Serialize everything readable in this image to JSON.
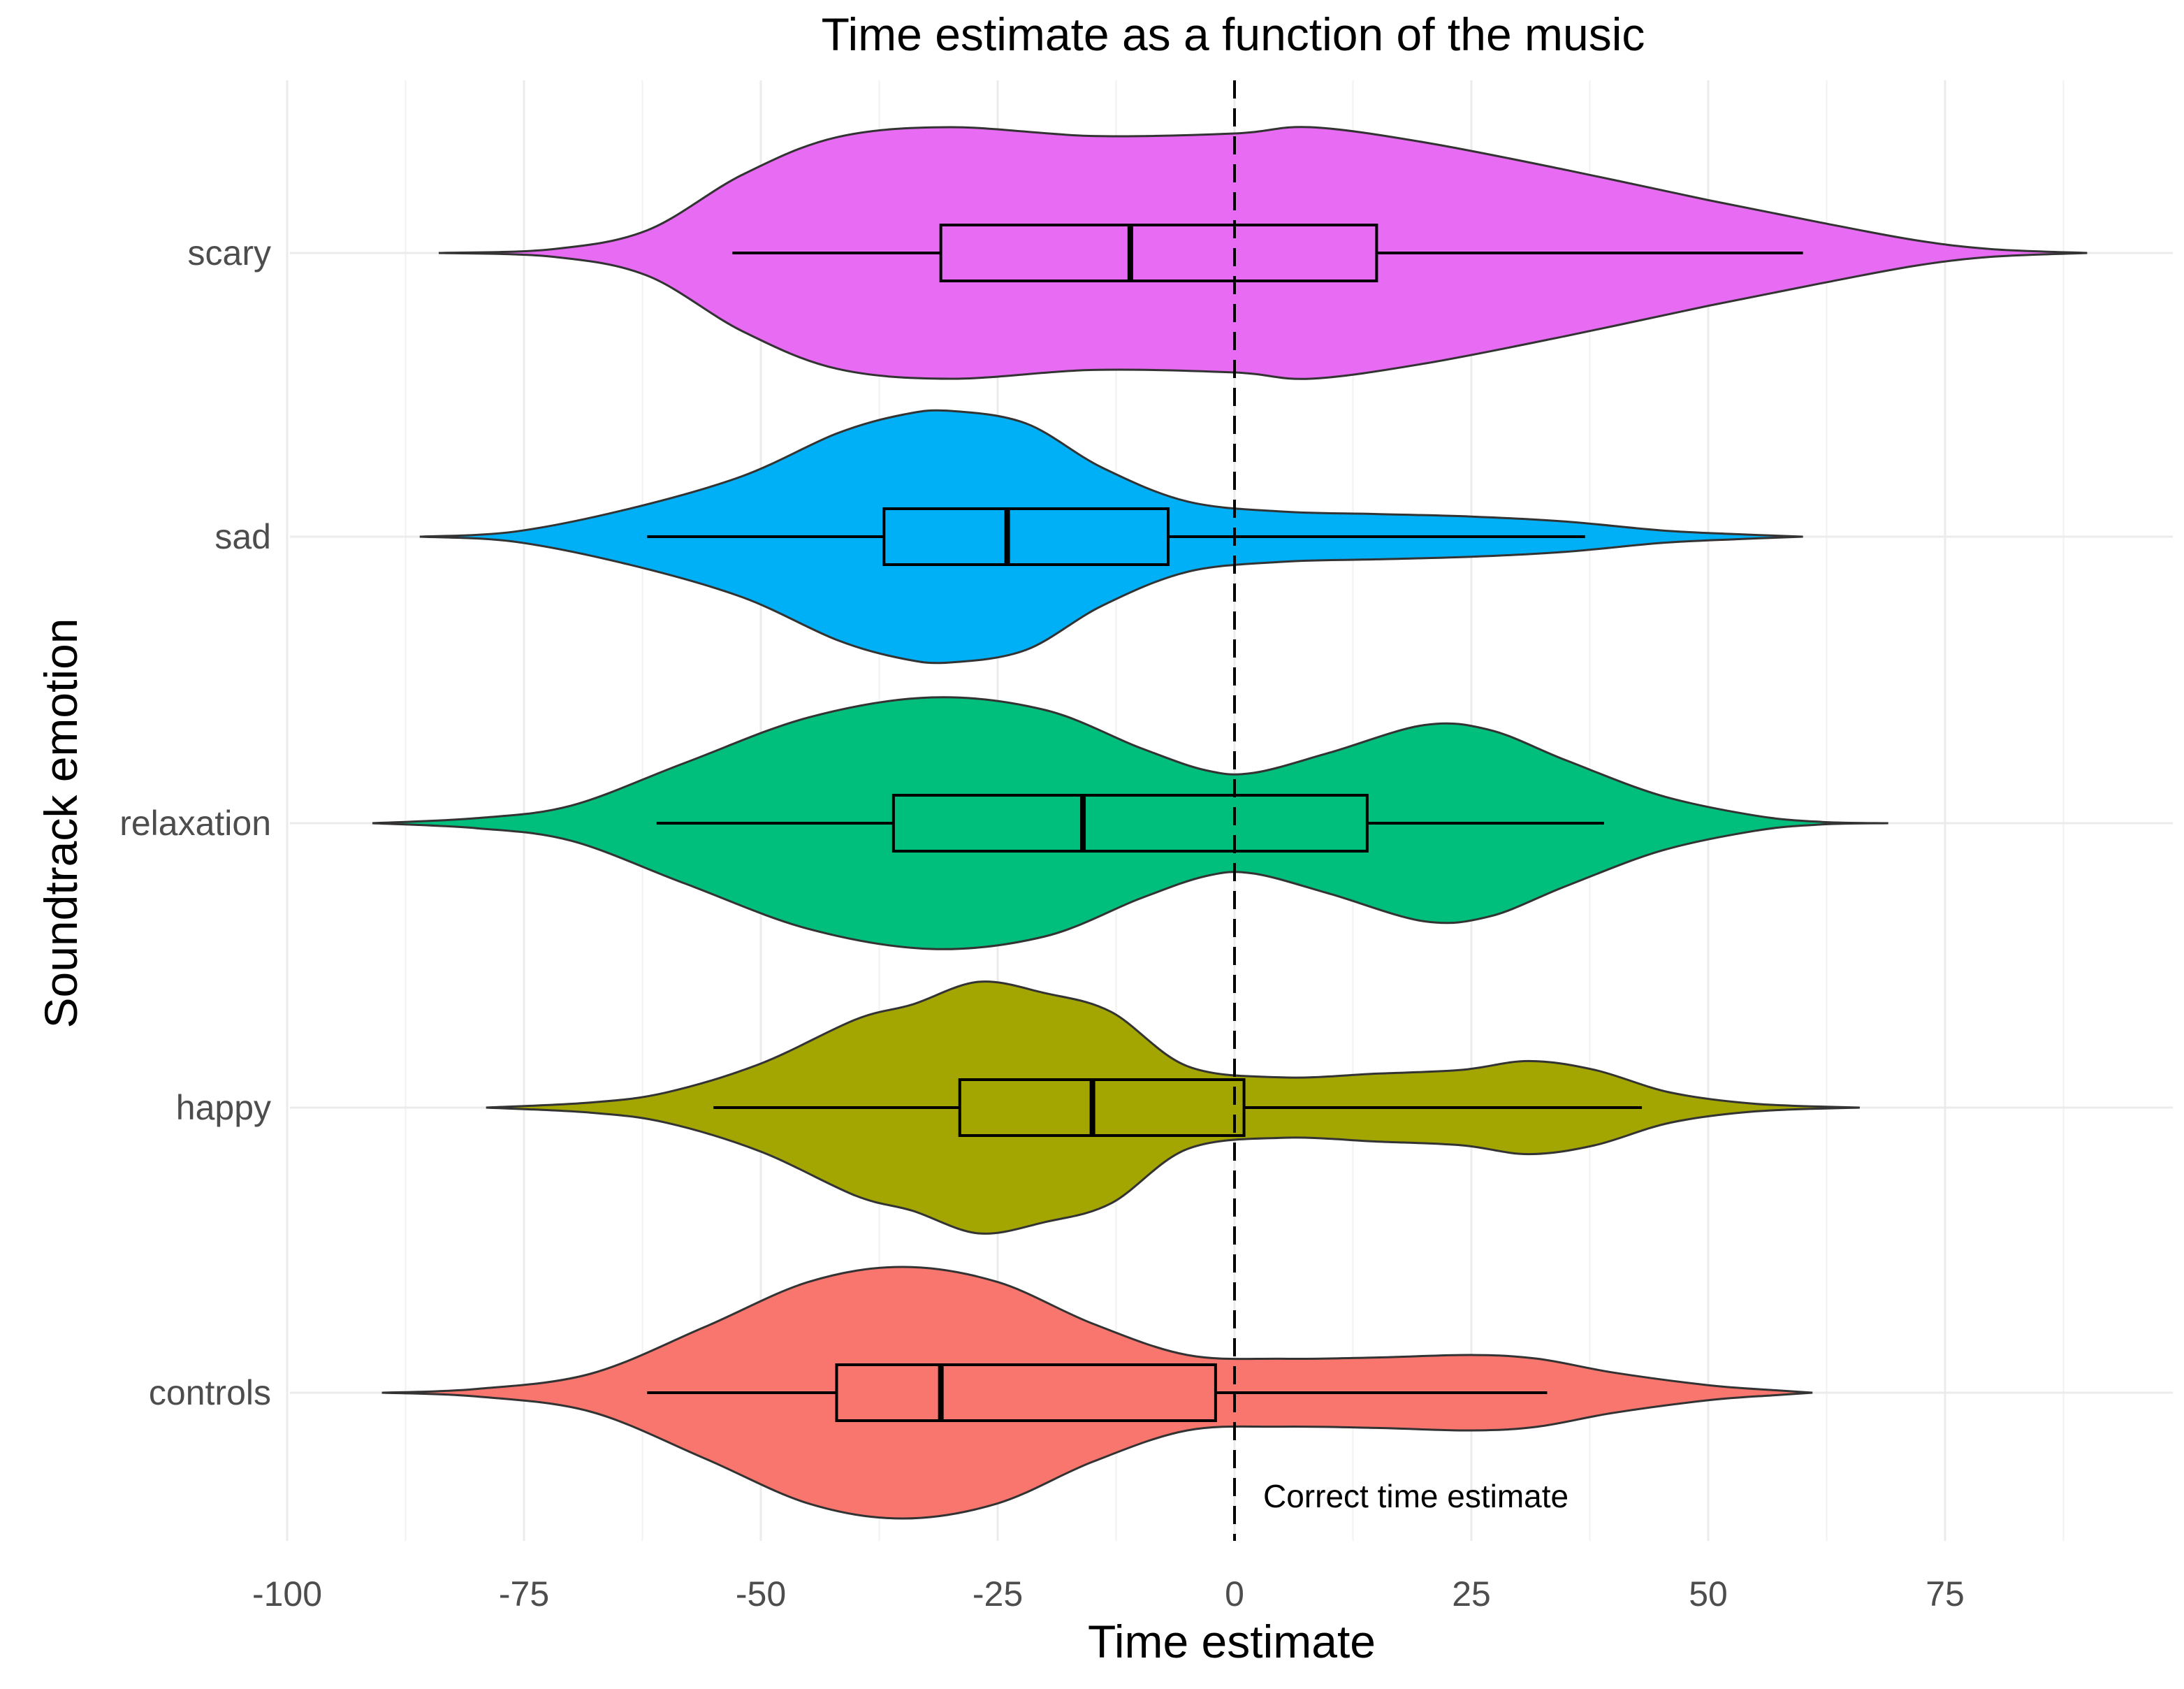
{
  "chart_data": {
    "type": "violin",
    "title": "Time estimate as a function of the music",
    "xlabel": "Time estimate",
    "ylabel": "Soundtrack emotion",
    "xlim": [
      -100,
      100
    ],
    "x_ticks": [
      "-100",
      "-75",
      "-50",
      "-25",
      "0",
      "25",
      "50",
      "75"
    ],
    "x_tick_values": [
      -100,
      -75,
      -50,
      -25,
      0,
      25,
      50,
      75
    ],
    "grid": true,
    "categories": [
      "scary",
      "sad",
      "relaxation",
      "happy",
      "controls"
    ],
    "reference_line": {
      "x": 0,
      "style": "dashed",
      "label": "Correct time estimate"
    },
    "series": [
      {
        "category": "scary",
        "color": "#E76BF3",
        "range": [
          -84,
          90
        ],
        "box": {
          "whisker_low": -53,
          "q1": -31,
          "median": -11,
          "q3": 15,
          "whisker_high": 60
        },
        "density": [
          [
            -84,
            0
          ],
          [
            -72,
            0.03
          ],
          [
            -62,
            0.18
          ],
          [
            -52,
            0.62
          ],
          [
            -42,
            0.92
          ],
          [
            -30,
            1.0
          ],
          [
            -15,
            0.93
          ],
          [
            0,
            0.95
          ],
          [
            8,
            1.0
          ],
          [
            20,
            0.88
          ],
          [
            35,
            0.66
          ],
          [
            50,
            0.42
          ],
          [
            62,
            0.24
          ],
          [
            72,
            0.1
          ],
          [
            80,
            0.03
          ],
          [
            90,
            0
          ]
        ]
      },
      {
        "category": "sad",
        "color": "#00B0F6",
        "range": [
          -86,
          60
        ],
        "box": {
          "whisker_low": -62,
          "q1": -37,
          "median": -24,
          "q3": -7,
          "whisker_high": 37
        },
        "density": [
          [
            -86,
            0
          ],
          [
            -76,
            0.04
          ],
          [
            -64,
            0.22
          ],
          [
            -52,
            0.48
          ],
          [
            -42,
            0.82
          ],
          [
            -35,
            0.97
          ],
          [
            -30,
            1.0
          ],
          [
            -22,
            0.9
          ],
          [
            -14,
            0.55
          ],
          [
            -5,
            0.28
          ],
          [
            5,
            0.2
          ],
          [
            15,
            0.18
          ],
          [
            25,
            0.16
          ],
          [
            35,
            0.12
          ],
          [
            45,
            0.05
          ],
          [
            53,
            0.02
          ],
          [
            60,
            0
          ]
        ]
      },
      {
        "category": "relaxation",
        "color": "#00BF7D",
        "range": [
          -91,
          69
        ],
        "box": {
          "whisker_low": -61,
          "q1": -36,
          "median": -16,
          "q3": 14,
          "whisker_high": 39
        },
        "density": [
          [
            -91,
            0
          ],
          [
            -80,
            0.04
          ],
          [
            -70,
            0.14
          ],
          [
            -58,
            0.48
          ],
          [
            -45,
            0.84
          ],
          [
            -32,
            1.0
          ],
          [
            -20,
            0.9
          ],
          [
            -10,
            0.6
          ],
          [
            -3,
            0.42
          ],
          [
            2,
            0.4
          ],
          [
            10,
            0.56
          ],
          [
            20,
            0.78
          ],
          [
            27,
            0.74
          ],
          [
            35,
            0.5
          ],
          [
            45,
            0.22
          ],
          [
            55,
            0.06
          ],
          [
            62,
            0.01
          ],
          [
            69,
            0
          ]
        ]
      },
      {
        "category": "happy",
        "color": "#A3A500",
        "range": [
          -79,
          66
        ],
        "box": {
          "whisker_low": -55,
          "q1": -29,
          "median": -15,
          "q3": 1,
          "whisker_high": 43
        },
        "density": [
          [
            -79,
            0
          ],
          [
            -68,
            0.04
          ],
          [
            -60,
            0.12
          ],
          [
            -50,
            0.35
          ],
          [
            -40,
            0.7
          ],
          [
            -34,
            0.82
          ],
          [
            -27,
            1.0
          ],
          [
            -20,
            0.91
          ],
          [
            -13,
            0.76
          ],
          [
            -5,
            0.33
          ],
          [
            5,
            0.24
          ],
          [
            15,
            0.27
          ],
          [
            24,
            0.3
          ],
          [
            31,
            0.37
          ],
          [
            38,
            0.3
          ],
          [
            46,
            0.12
          ],
          [
            55,
            0.03
          ],
          [
            66,
            0
          ]
        ]
      },
      {
        "category": "controls",
        "color": "#F8766D",
        "range": [
          -90,
          61
        ],
        "box": {
          "whisker_low": -62,
          "q1": -42,
          "median": -31,
          "q3": -2,
          "whisker_high": 33
        },
        "density": [
          [
            -90,
            0
          ],
          [
            -80,
            0.03
          ],
          [
            -68,
            0.15
          ],
          [
            -56,
            0.52
          ],
          [
            -45,
            0.88
          ],
          [
            -35,
            1.0
          ],
          [
            -25,
            0.88
          ],
          [
            -15,
            0.55
          ],
          [
            -5,
            0.3
          ],
          [
            5,
            0.27
          ],
          [
            15,
            0.28
          ],
          [
            25,
            0.3
          ],
          [
            32,
            0.27
          ],
          [
            40,
            0.16
          ],
          [
            50,
            0.06
          ],
          [
            57,
            0.02
          ],
          [
            61,
            0
          ]
        ]
      }
    ]
  }
}
